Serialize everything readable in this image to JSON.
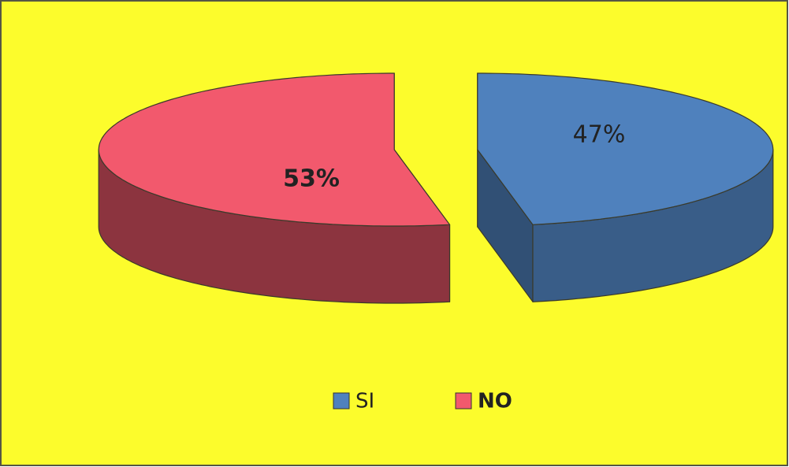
{
  "chart_data": {
    "type": "pie3d",
    "categories": [
      "SI",
      "NO"
    ],
    "values": [
      47,
      53
    ],
    "value_labels": [
      "47%",
      "53%"
    ],
    "colors": [
      "#4f81bd",
      "#f2596d"
    ],
    "background": "#fcfc2c",
    "legend": "bottom",
    "start_angle": 0,
    "clockwise": true
  }
}
